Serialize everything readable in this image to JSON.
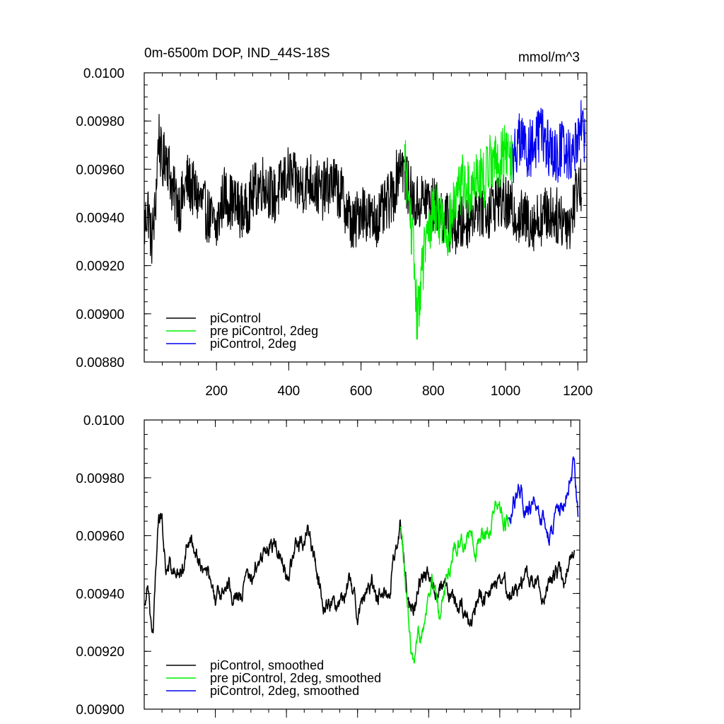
{
  "chart_data": [
    {
      "type": "line",
      "title": "0m-6500m DOP, IND_44S-18S",
      "units": "mmol/m^3",
      "xlabel": "",
      "ylabel": "",
      "xlim": [
        0,
        1225
      ],
      "ylim": [
        0.0088,
        0.01
      ],
      "x_ticks": [
        200,
        400,
        600,
        800,
        1000,
        1200
      ],
      "x_tick_labels": [
        "200",
        "400",
        "600",
        "800",
        "1000",
        "1200"
      ],
      "y_ticks": [
        0.0088,
        0.009,
        0.0092,
        0.0094,
        0.0096,
        0.0098,
        0.01
      ],
      "y_tick_labels": [
        "0.00880",
        "0.00900",
        "0.00920",
        "0.00940",
        "0.00960",
        "0.00980",
        "0.0100"
      ],
      "legend_position": "bottom-left",
      "series": [
        {
          "name": "piControl",
          "color": "#000000",
          "x": [
            0,
            10,
            20,
            30,
            40,
            50,
            60,
            80,
            100,
            120,
            150,
            180,
            200,
            220,
            250,
            280,
            300,
            330,
            360,
            400,
            430,
            460,
            490,
            520,
            550,
            580,
            600,
            630,
            660,
            690,
            710,
            730,
            750,
            780,
            800,
            830,
            860,
            890,
            920,
            950,
            980,
            1000,
            1040,
            1080,
            1120,
            1150,
            1180,
            1200,
            1210
          ],
          "values": [
            0.00935,
            0.00945,
            0.0093,
            0.00942,
            0.00975,
            0.0096,
            0.00968,
            0.0095,
            0.00945,
            0.00955,
            0.00948,
            0.0094,
            0.00935,
            0.0095,
            0.00945,
            0.00942,
            0.0095,
            0.00955,
            0.00948,
            0.00958,
            0.00952,
            0.00956,
            0.0095,
            0.00955,
            0.00948,
            0.00935,
            0.00945,
            0.00938,
            0.00942,
            0.0095,
            0.00965,
            0.00952,
            0.00945,
            0.00948,
            0.00945,
            0.0094,
            0.00935,
            0.00938,
            0.00945,
            0.00942,
            0.00948,
            0.00945,
            0.0094,
            0.00938,
            0.00942,
            0.0094,
            0.00938,
            0.00955,
            0.00952
          ]
        },
        {
          "name": "pre piControl, 2deg",
          "color": "#00ee00",
          "x": [
            720,
            730,
            740,
            750,
            755,
            760,
            770,
            780,
            790,
            800,
            820,
            840,
            860,
            880,
            900,
            920,
            940,
            960,
            980,
            1000,
            1020
          ],
          "values": [
            0.00965,
            0.0095,
            0.00935,
            0.00915,
            0.00895,
            0.00905,
            0.0092,
            0.0093,
            0.00935,
            0.00945,
            0.0094,
            0.00935,
            0.00945,
            0.00955,
            0.0095,
            0.0096,
            0.00955,
            0.00965,
            0.00962,
            0.00968,
            0.00965
          ]
        },
        {
          "name": "piControl, 2deg",
          "color": "#0000ee",
          "x": [
            1020,
            1040,
            1060,
            1080,
            1100,
            1120,
            1140,
            1160,
            1180,
            1200,
            1210,
            1220
          ],
          "values": [
            0.00965,
            0.00972,
            0.00968,
            0.0097,
            0.00975,
            0.00968,
            0.00965,
            0.0097,
            0.00965,
            0.00975,
            0.0098,
            0.0097
          ]
        }
      ]
    },
    {
      "type": "line",
      "title": "",
      "xlabel": "",
      "ylabel": "",
      "xlim": [
        0,
        1225
      ],
      "ylim": [
        0.009,
        0.01
      ],
      "y_ticks": [
        0.009,
        0.0092,
        0.0094,
        0.0096,
        0.0098,
        0.01
      ],
      "y_tick_labels": [
        "0.00900",
        "0.00920",
        "0.00940",
        "0.00960",
        "0.00980",
        "0.0100"
      ],
      "legend_position": "bottom-left",
      "series": [
        {
          "name": "piControl, smoothed",
          "color": "#000000",
          "x": [
            0,
            10,
            20,
            25,
            40,
            50,
            60,
            80,
            100,
            120,
            140,
            160,
            180,
            200,
            230,
            260,
            300,
            340,
            370,
            400,
            430,
            460,
            500,
            540,
            570,
            600,
            640,
            680,
            700,
            720,
            740,
            760,
            780,
            800,
            840,
            880,
            920,
            960,
            1000,
            1040,
            1080,
            1120,
            1160,
            1180,
            1200,
            1210
          ],
          "values": [
            0.00935,
            0.00948,
            0.0093,
            0.00925,
            0.00968,
            0.00965,
            0.0095,
            0.00948,
            0.00945,
            0.00955,
            0.00958,
            0.0095,
            0.00945,
            0.00935,
            0.00945,
            0.0094,
            0.00945,
            0.00955,
            0.00958,
            0.00948,
            0.00955,
            0.00962,
            0.0094,
            0.00935,
            0.00945,
            0.00935,
            0.00942,
            0.00938,
            0.0095,
            0.00965,
            0.0094,
            0.00935,
            0.00948,
            0.00945,
            0.0094,
            0.00935,
            0.0093,
            0.0094,
            0.00945,
            0.00942,
            0.00945,
            0.0094,
            0.00948,
            0.00942,
            0.00955,
            0.00955
          ]
        },
        {
          "name": "pre piControl, 2deg, smoothed",
          "color": "#00ee00",
          "x": [
            720,
            735,
            750,
            760,
            770,
            790,
            810,
            830,
            850,
            870,
            890,
            910,
            930,
            950,
            970,
            990,
            1010,
            1025
          ],
          "values": [
            0.00962,
            0.0094,
            0.0092,
            0.00912,
            0.0092,
            0.00935,
            0.00945,
            0.00932,
            0.00945,
            0.00955,
            0.00958,
            0.00962,
            0.00955,
            0.0096,
            0.00965,
            0.0097,
            0.00968,
            0.00965
          ]
        },
        {
          "name": "piControl, 2deg, smoothed",
          "color": "#0000ee",
          "x": [
            1025,
            1040,
            1060,
            1080,
            1100,
            1120,
            1140,
            1160,
            1180,
            1200,
            1210,
            1220
          ],
          "values": [
            0.00965,
            0.00972,
            0.00975,
            0.00968,
            0.00972,
            0.00965,
            0.0096,
            0.00968,
            0.00972,
            0.0098,
            0.00985,
            0.00968
          ]
        }
      ]
    }
  ]
}
